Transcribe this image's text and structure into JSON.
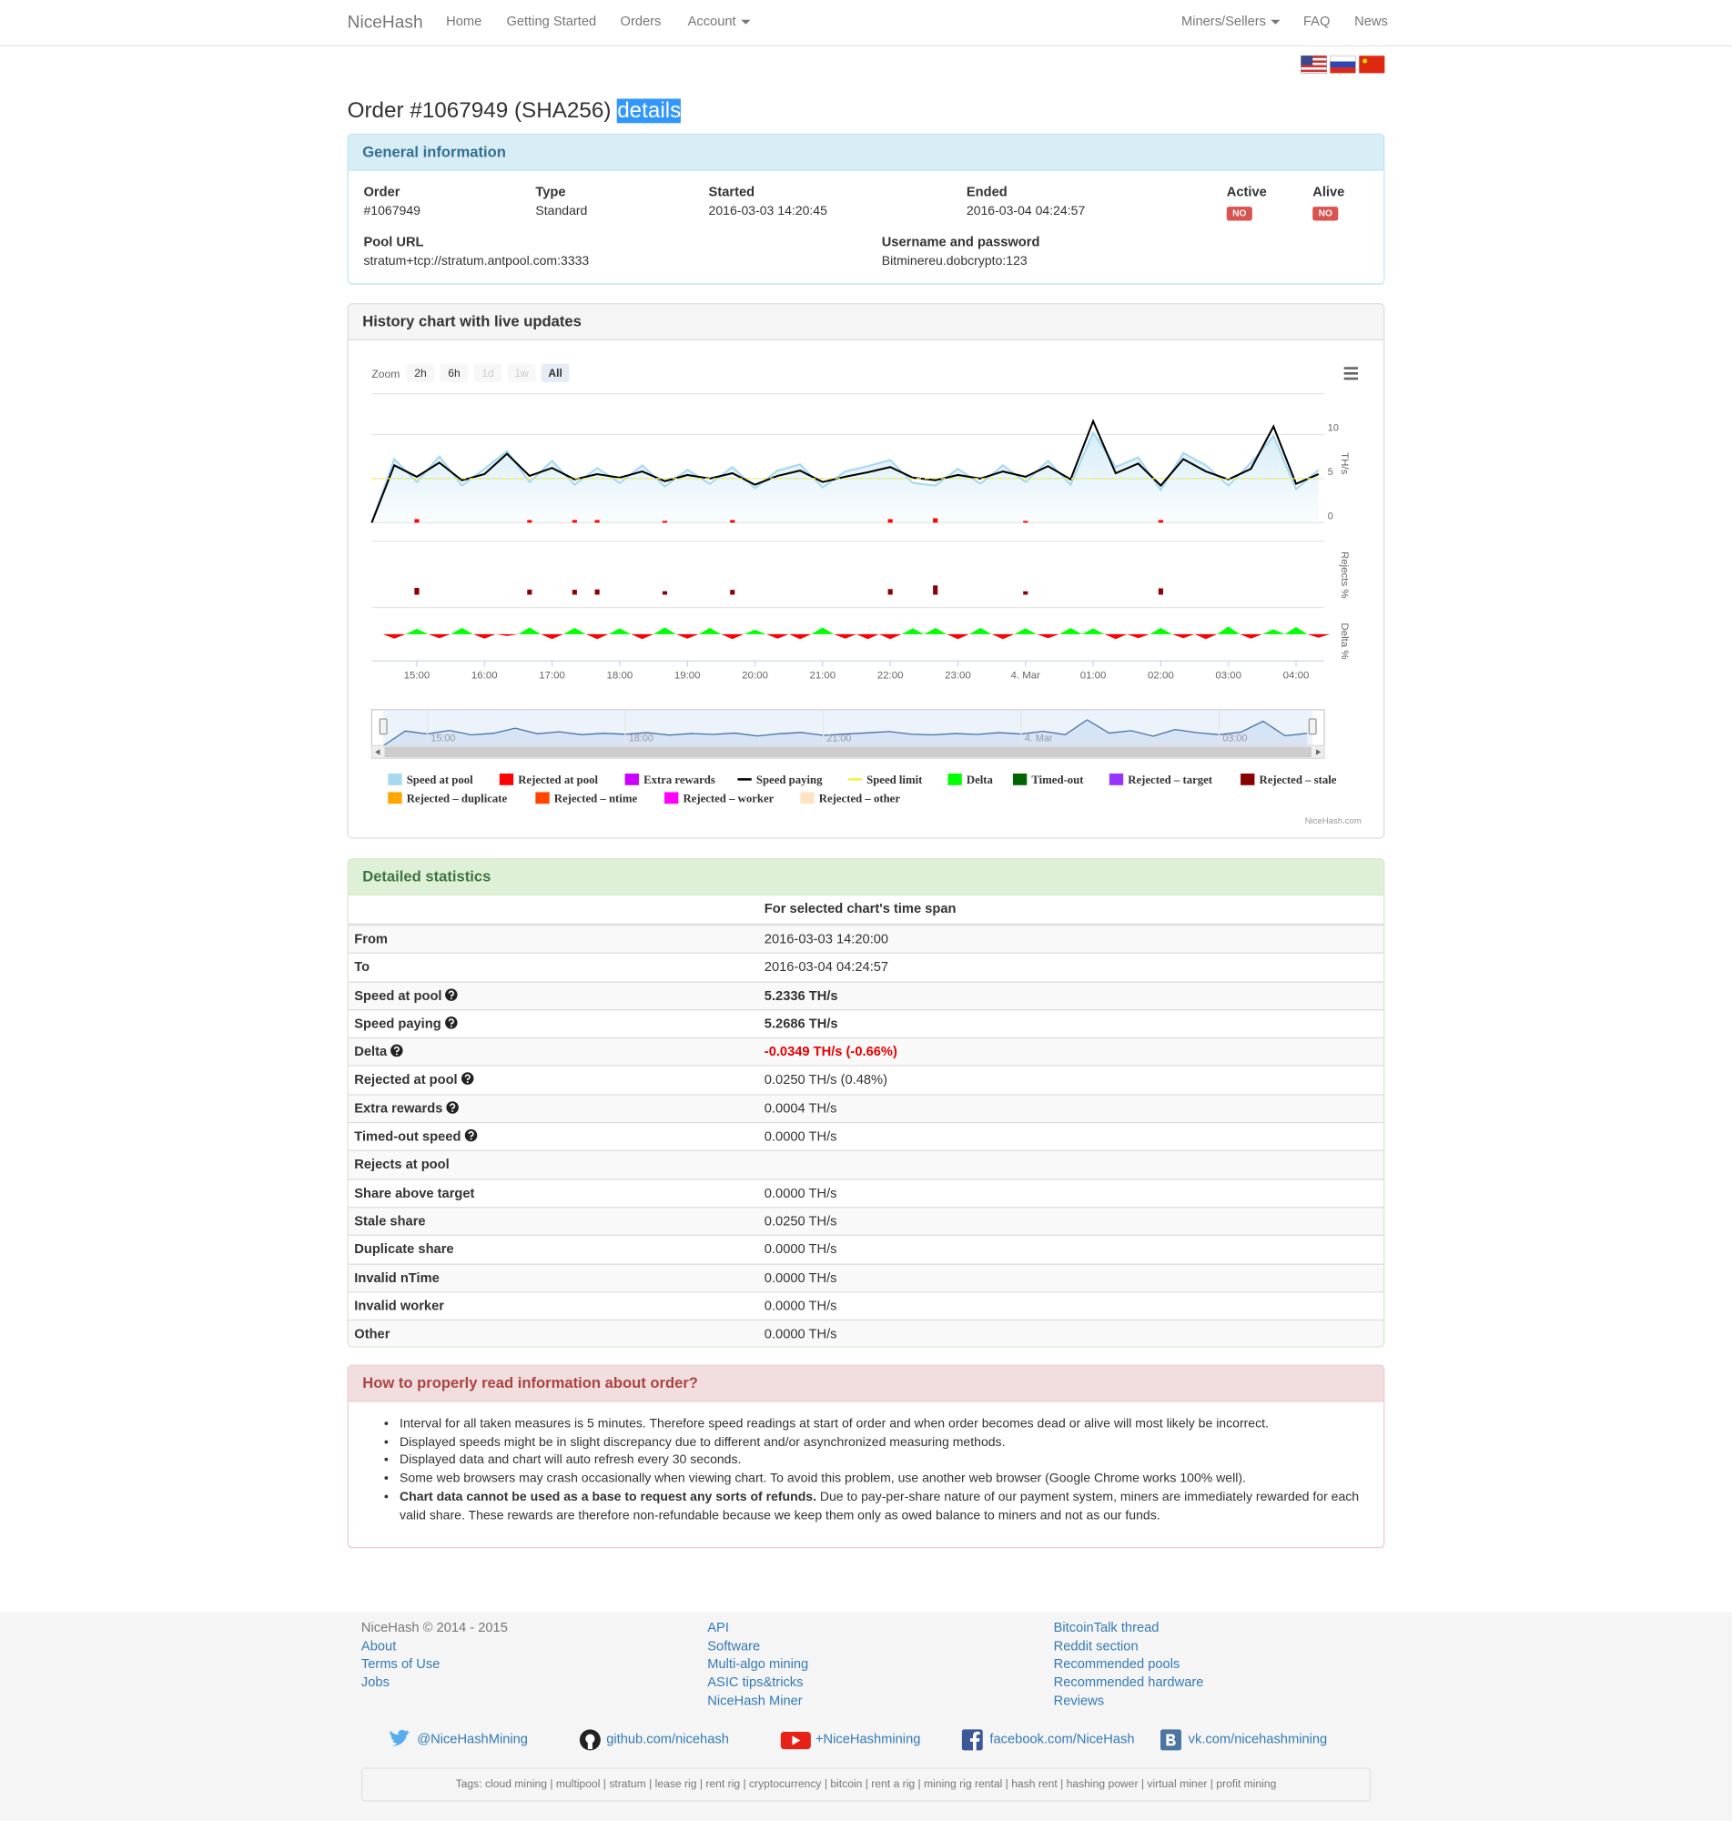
{
  "nav": {
    "brand": "NiceHash",
    "left": [
      {
        "text": "Home"
      },
      {
        "text": "Getting Started"
      },
      {
        "text": "Orders"
      },
      {
        "text": "Account",
        "dropdown": true
      }
    ],
    "right": [
      {
        "text": "Miners/Sellers",
        "dropdown": true
      },
      {
        "text": "FAQ"
      },
      {
        "text": "News"
      }
    ]
  },
  "heading": {
    "text": "Order #1067949 (SHA256)",
    "highlight": "details"
  },
  "general": {
    "title": "General information",
    "fields": [
      {
        "label": "Order",
        "value": "#1067949"
      },
      {
        "label": "Type",
        "value": "Standard"
      },
      {
        "label": "Started",
        "value": "2016-03-03 14:20:45"
      },
      {
        "label": "Ended",
        "value": "2016-03-04 04:24:57"
      },
      {
        "label": "Active",
        "badge": "NO"
      },
      {
        "label": "Alive",
        "badge": "NO"
      },
      {
        "label": "Pool URL",
        "value": "stratum+tcp://stratum.antpool.com:3333"
      },
      {
        "label": "Username and password",
        "value": "Bitminereu.dobcrypto:123"
      }
    ]
  },
  "history": {
    "title": "History chart with live updates"
  },
  "chart_data": {
    "type": "line",
    "zoom": {
      "label": "Zoom",
      "buttons": [
        "2h",
        "6h",
        "1d",
        "1w",
        "All"
      ],
      "disabled": [
        2,
        3
      ],
      "selected": 4
    },
    "credit": "NiceHash.com",
    "x": [
      "14:20",
      "14:40",
      "15:00",
      "15:20",
      "15:40",
      "16:00",
      "16:20",
      "16:40",
      "17:00",
      "17:20",
      "17:40",
      "18:00",
      "18:20",
      "18:40",
      "19:00",
      "19:20",
      "19:40",
      "20:00",
      "20:20",
      "20:40",
      "21:00",
      "21:20",
      "21:40",
      "22:00",
      "22:20",
      "22:40",
      "23:00",
      "23:20",
      "23:40",
      "00:00",
      "00:20",
      "00:40",
      "01:00",
      "01:20",
      "01:40",
      "02:00",
      "02:20",
      "02:40",
      "03:00",
      "03:20",
      "03:40",
      "04:00",
      "04:20"
    ],
    "xlim": [
      "14:20",
      "04:25"
    ],
    "xticks": [
      "15:00",
      "16:00",
      "17:00",
      "18:00",
      "19:00",
      "20:00",
      "21:00",
      "22:00",
      "23:00",
      {
        "value": "00:00",
        "label": "4. Mar"
      },
      "01:00",
      "02:00",
      "03:00",
      "04:00"
    ],
    "panels": [
      {
        "title": "TH/s",
        "ylim": [
          0,
          15
        ],
        "yticks": [
          0,
          5,
          10
        ],
        "grid": true
      },
      {
        "title": "Rejects %",
        "ylim": [
          0,
          60
        ]
      },
      {
        "title": "Delta %",
        "ylim": [
          -60,
          60
        ]
      }
    ],
    "navigator": {
      "series": 3,
      "xtick_every": 3
    },
    "series": [
      {
        "name": "Speed at pool",
        "color": "#a6d8ef",
        "style": "area",
        "panel": 0,
        "values": [
          0,
          7.2,
          4.6,
          7.5,
          4.2,
          6.1,
          8.1,
          4.6,
          7.0,
          4.3,
          6.2,
          4.5,
          6.5,
          4.1,
          6.0,
          4.4,
          6.3,
          3.9,
          5.9,
          6.6,
          4.0,
          5.8,
          6.4,
          7.1,
          4.5,
          4.2,
          6.1,
          4.4,
          6.5,
          4.6,
          7.0,
          4.3,
          10.2,
          6.3,
          7.4,
          3.7,
          7.9,
          6.5,
          4.2,
          6.8,
          9.8,
          3.8,
          6.0
        ]
      },
      {
        "name": "Rejected at pool",
        "color": "#ff0000",
        "style": "column",
        "panel": 0,
        "values": [
          0,
          0,
          0.4,
          0,
          0,
          0,
          0,
          0.3,
          0,
          0.3,
          0.3,
          0,
          0,
          0.2,
          0,
          0,
          0.3,
          0,
          0,
          0,
          0,
          0,
          0,
          0.4,
          0,
          0.5,
          0,
          0,
          0,
          0.2,
          0,
          0,
          0,
          0,
          0,
          0.3,
          0,
          0,
          0,
          0,
          0,
          0,
          0
        ]
      },
      {
        "name": "Extra rewards",
        "color": "#cc00ff",
        "style": "column"
      },
      {
        "name": "Speed paying",
        "color": "#000000",
        "style": "line",
        "panel": 0,
        "values": [
          0,
          6.5,
          5.2,
          6.8,
          4.8,
          5.5,
          7.8,
          5.3,
          6.2,
          4.9,
          5.5,
          5.1,
          5.8,
          4.7,
          5.4,
          5.0,
          5.6,
          4.3,
          5.3,
          5.9,
          4.6,
          5.2,
          5.7,
          6.3,
          5.1,
          4.8,
          5.4,
          5.0,
          5.8,
          5.2,
          6.4,
          4.9,
          11.5,
          5.6,
          6.7,
          4.2,
          7.2,
          5.8,
          4.9,
          6.1,
          10.9,
          4.4,
          5.5
        ]
      },
      {
        "name": "Speed limit",
        "color": "#f2f23a",
        "style": "dashed-line",
        "panel": 0,
        "values": [
          5,
          5,
          5,
          5,
          5,
          5,
          5,
          5,
          5,
          5,
          5,
          5,
          5,
          5,
          5,
          5,
          5,
          5,
          5,
          5,
          5,
          5,
          5,
          5,
          5,
          5,
          5,
          5,
          5,
          5,
          5,
          5,
          5,
          5,
          5,
          5,
          5,
          5,
          5,
          5,
          5,
          5,
          5
        ]
      },
      {
        "name": "Delta",
        "color": "#00ff00",
        "negative_color": "#ff0000",
        "style": "signed-area",
        "panel": 2,
        "values": [
          0,
          -10,
          12,
          -9,
          14,
          -10,
          -4,
          15,
          -11,
          14,
          -11,
          13,
          -11,
          15,
          -10,
          14,
          -11,
          10,
          -10,
          -11,
          15,
          -10,
          -11,
          -11,
          13,
          14,
          -11,
          14,
          -11,
          13,
          -9,
          14,
          13,
          -11,
          -9,
          14,
          -9,
          -11,
          17,
          -10,
          11,
          16,
          -8
        ]
      },
      {
        "name": "Timed-out",
        "color": "#006400",
        "style": "column"
      },
      {
        "name": "Rejected – target",
        "color": "#9933ff",
        "style": "column"
      },
      {
        "name": "Rejected – stale",
        "color": "#8b0000",
        "style": "column",
        "panel": 1,
        "values": [
          0,
          0,
          7.7,
          0,
          0,
          0,
          0,
          5.7,
          0,
          5.5,
          5.9,
          0,
          0,
          3.9,
          0,
          0,
          5.4,
          0,
          0,
          0,
          0,
          0,
          0,
          6.3,
          0,
          10.4,
          0,
          0,
          0,
          3.8,
          0,
          0,
          0,
          0,
          0,
          7.1,
          0,
          0,
          0,
          0,
          0,
          0,
          0
        ]
      },
      {
        "name": "Rejected – duplicate",
        "color": "#ffa500",
        "style": "column"
      },
      {
        "name": "Rejected – ntime",
        "color": "#ff4500",
        "style": "column"
      },
      {
        "name": "Rejected – worker",
        "color": "#ff00ff",
        "style": "column"
      },
      {
        "name": "Rejected – other",
        "color": "#ffe4c4",
        "style": "column"
      }
    ]
  },
  "stats": {
    "title": "Detailed statistics",
    "column_header": "For selected chart's time span",
    "rows": [
      {
        "label": "From",
        "value": "2016-03-03 14:20:00"
      },
      {
        "label": "To",
        "value": "2016-03-04 04:24:57"
      },
      {
        "label": "Speed at pool",
        "value": "5.2336 TH/s",
        "help": true,
        "emphasis": "bold"
      },
      {
        "label": "Speed paying",
        "value": "5.2686 TH/s",
        "help": true,
        "emphasis": "bold"
      },
      {
        "label": "Delta",
        "value": "-0.0349 TH/s (-0.66%)",
        "help": true,
        "emphasis": "negative"
      },
      {
        "label": "Rejected at pool",
        "value": "0.0250 TH/s (0.48%)",
        "help": true
      },
      {
        "label": "Extra rewards",
        "value": "0.0004 TH/s",
        "help": true
      },
      {
        "label": "Timed-out speed",
        "value": "0.0000 TH/s",
        "help": true
      },
      {
        "label": "Rejects at pool"
      },
      {
        "label": "Share above target",
        "value": "0.0000 TH/s"
      },
      {
        "label": "Stale share",
        "value": "0.0250 TH/s"
      },
      {
        "label": "Duplicate share",
        "value": "0.0000 TH/s"
      },
      {
        "label": "Invalid nTime",
        "value": "0.0000 TH/s"
      },
      {
        "label": "Invalid worker",
        "value": "0.0000 TH/s"
      },
      {
        "label": "Other",
        "value": "0.0000 TH/s"
      }
    ]
  },
  "howto": {
    "title": "How to properly read information about order?",
    "items": [
      {
        "text": "Interval for all taken measures is 5 minutes. Therefore speed readings at start of order and when order becomes dead or alive will most likely be incorrect."
      },
      {
        "text": "Displayed speeds might be in slight discrepancy due to different and/or asynchronized measuring methods."
      },
      {
        "text": "Displayed data and chart will auto refresh every 30 seconds."
      },
      {
        "text": "Some web browsers may crash occasionally when viewing chart. To avoid this problem, use another web browser (Google Chrome works 100% well)."
      },
      {
        "bold": "Chart data cannot be used as a base to request any sorts of refunds.",
        "text": "Due to pay-per-share nature of our payment system, miners are immediately rewarded for each valid share. These rewards are therefore non-refundable because we keep them only as owed balance to miners and not as our funds."
      }
    ]
  },
  "footer": {
    "copyright": "NiceHash © 2014 - 2015",
    "columns": [
      [
        "About",
        "Terms of Use",
        "Jobs"
      ],
      [
        "API",
        "Software",
        "Multi-algo mining",
        "ASIC tips&tricks",
        "NiceHash Miner"
      ],
      [
        "BitcoinTalk thread",
        "Reddit section",
        "Recommended pools",
        "Recommended hardware",
        "Reviews"
      ]
    ],
    "social": [
      {
        "icon": "twitter",
        "text": "@NiceHashMining"
      },
      {
        "icon": "github",
        "text": "github.com/nicehash"
      },
      {
        "icon": "youtube",
        "text": "+NiceHashmining"
      },
      {
        "icon": "facebook",
        "text": "facebook.com/NiceHash"
      },
      {
        "icon": "vk",
        "text": "vk.com/nicehashmining"
      }
    ],
    "tags": "Tags: cloud mining | multipool | stratum | lease rig | rent rig | cryptocurrency | bitcoin | rent a rig | mining rig rental | hash rent | hashing power | virtual miner | profit mining"
  }
}
